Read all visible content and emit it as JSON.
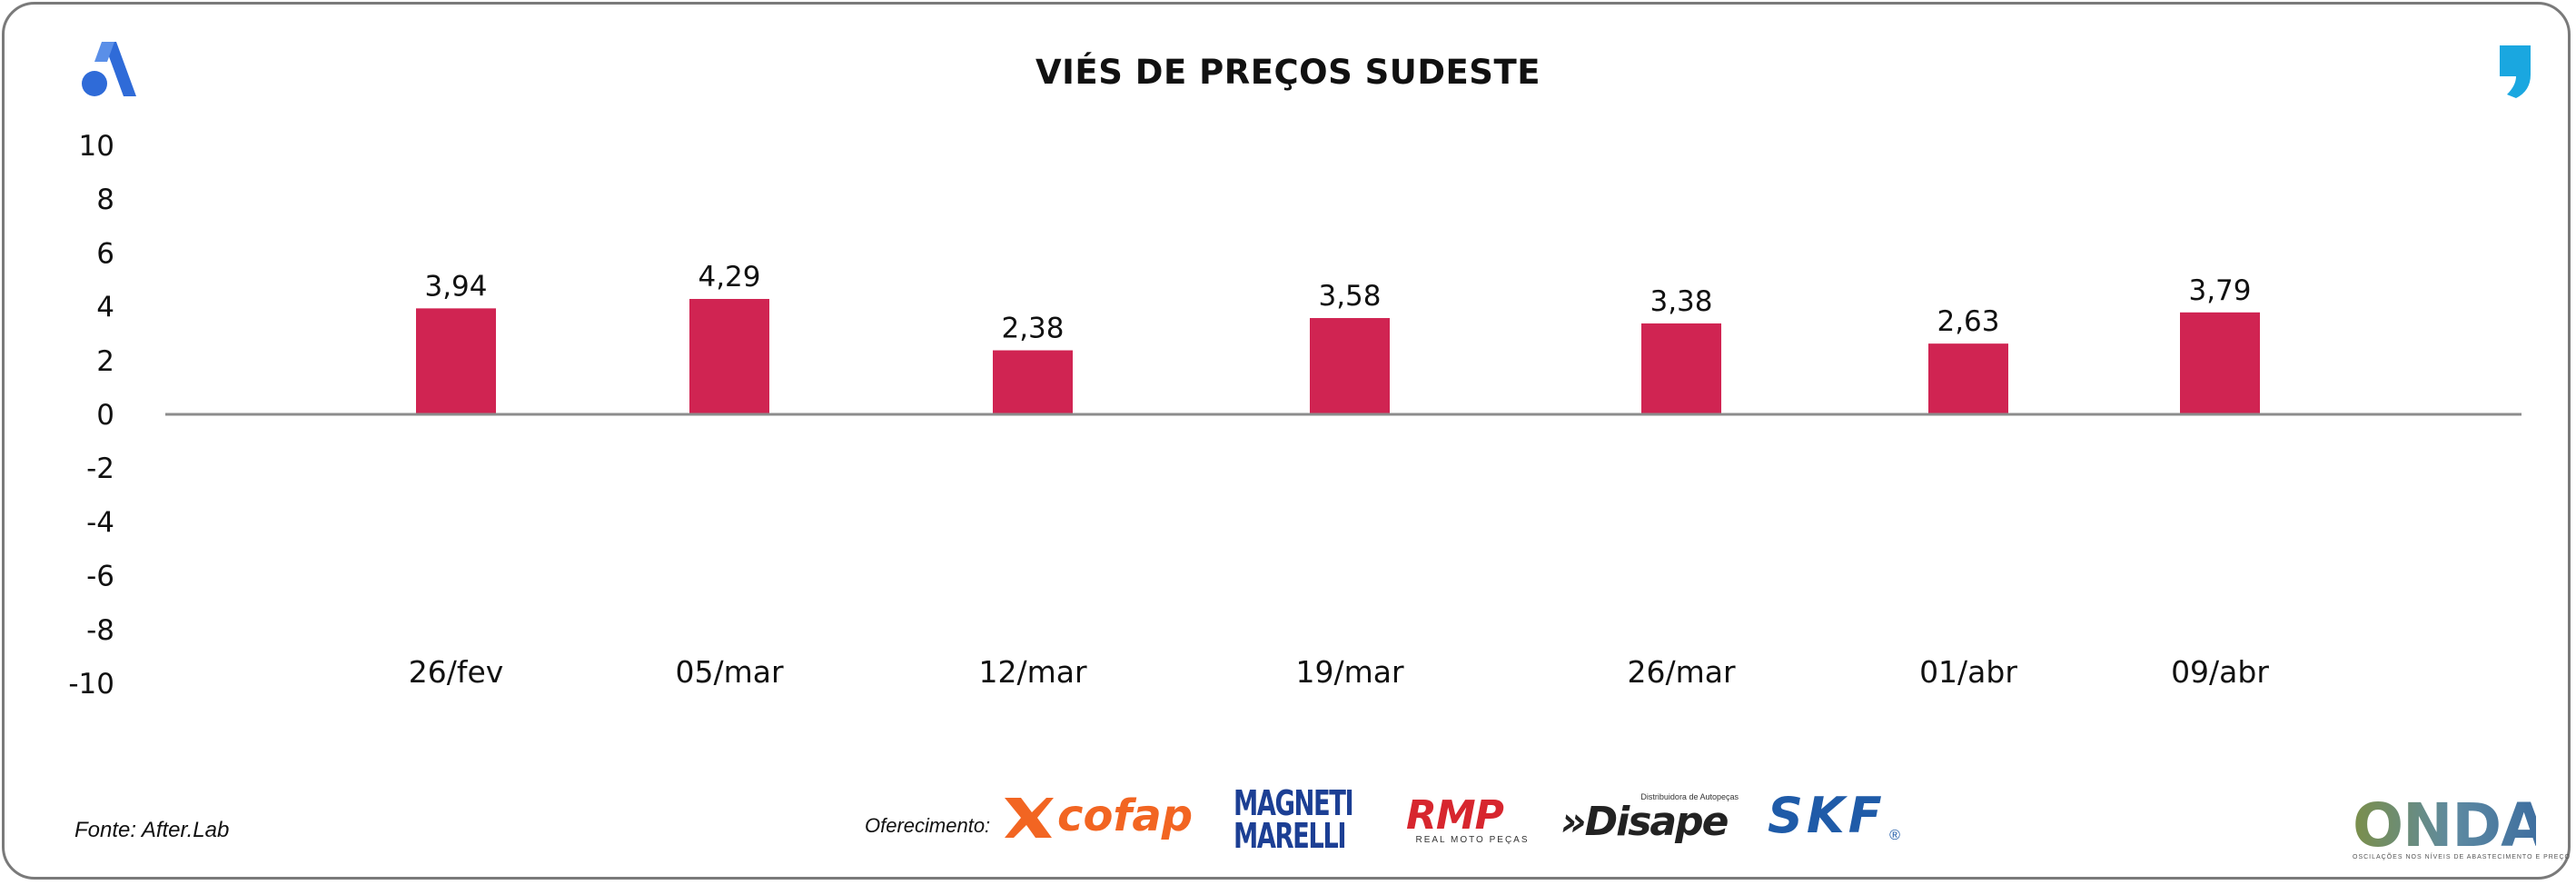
{
  "header": {
    "title": "VIÉS DE PREÇOS SUDESTE"
  },
  "chart_data": {
    "type": "bar",
    "title": "VIÉS DE PREÇOS SUDESTE",
    "categories": [
      "26/fev",
      "05/mar",
      "12/mar",
      "19/mar",
      "26/mar",
      "01/abr",
      "09/abr"
    ],
    "values": [
      3.94,
      4.29,
      2.38,
      3.58,
      3.38,
      2.63,
      3.79
    ],
    "data_labels": [
      "3,94",
      "4,29",
      "2,38",
      "3,58",
      "3,38",
      "2,63",
      "3,79"
    ],
    "ylim": [
      -10,
      10
    ],
    "yticks": [
      10,
      8,
      6,
      4,
      2,
      0,
      -2,
      -4,
      -6,
      -8,
      -10
    ],
    "xlabel": "",
    "ylabel": "",
    "grid": false,
    "bar_color": "#d02452",
    "axis_color": "#8c8c8c"
  },
  "footer": {
    "source": "Fonte: After.Lab",
    "sponsor_label": "Oferecimento:",
    "sponsors": {
      "cofap": "cofap",
      "magneti_line1": "MAGNETI",
      "magneti_line2": "MARELLI",
      "rmp": "RMP",
      "rmp_sub": "REAL MOTO PEÇAS",
      "disape_top": "Distribuidora de Autopeças",
      "disape": "»Disape",
      "skf": "SKF",
      "skf_mark": "®"
    },
    "brand": "ONDA",
    "brand_sub": "OSCILAÇÕES NOS NÍVEIS DE ABASTECIMENTO E PREÇO"
  },
  "colors": {
    "accent_blue": "#2f6bd8",
    "right_mark": "#1aa7e0",
    "frame": "#7a7a7a"
  },
  "icons": {
    "left_logo": "brand-a-icon",
    "right_logo": "comma-mark-icon"
  }
}
